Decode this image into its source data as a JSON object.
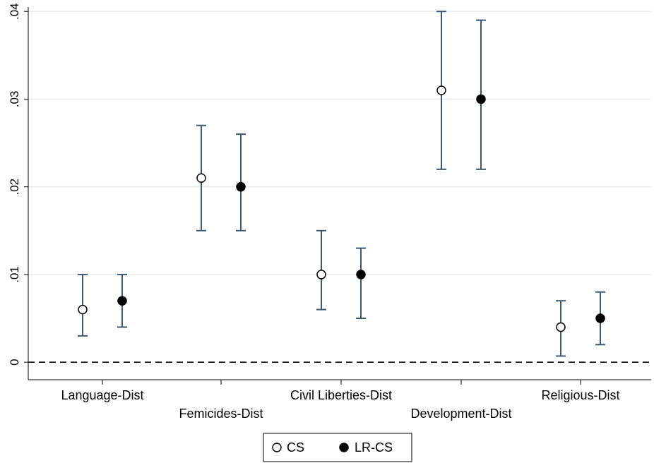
{
  "chart_data": {
    "type": "scatter",
    "categories": [
      "Language-Dist",
      "Femicides-Dist",
      "Civil Liberties-Dist",
      "Development-Dist",
      "Religious-Dist"
    ],
    "series": [
      {
        "name": "CS",
        "marker": "hollow-circle",
        "estimates": [
          0.006,
          0.021,
          0.01,
          0.031,
          0.004
        ],
        "lower": [
          0.003,
          0.015,
          0.006,
          0.022,
          0.0007
        ],
        "upper": [
          0.01,
          0.027,
          0.015,
          0.04,
          0.007
        ]
      },
      {
        "name": "LR-CS",
        "marker": "filled-circle",
        "estimates": [
          0.007,
          0.02,
          0.01,
          0.03,
          0.005
        ],
        "lower": [
          0.004,
          0.015,
          0.005,
          0.022,
          0.002
        ],
        "upper": [
          0.01,
          0.026,
          0.013,
          0.039,
          0.008
        ]
      }
    ],
    "y_ticks": [
      {
        "value": 0,
        "label": "0"
      },
      {
        "value": 0.01,
        "label": ".01"
      },
      {
        "value": 0.02,
        "label": ".02"
      },
      {
        "value": 0.03,
        "label": ".03"
      },
      {
        "value": 0.04,
        "label": ".04"
      }
    ],
    "ylim": [
      -0.002,
      0.0405
    ],
    "reference_line": {
      "value": 0,
      "style": "dashed"
    },
    "grid": true,
    "legend": {
      "placement": "bottom-center",
      "entries": [
        "CS",
        "LR-CS"
      ]
    },
    "colors": {
      "errorbar": "#3e5a73",
      "grid": "#eaeaea",
      "marker": "#000000"
    },
    "title": "",
    "xlabel": "",
    "ylabel": ""
  }
}
